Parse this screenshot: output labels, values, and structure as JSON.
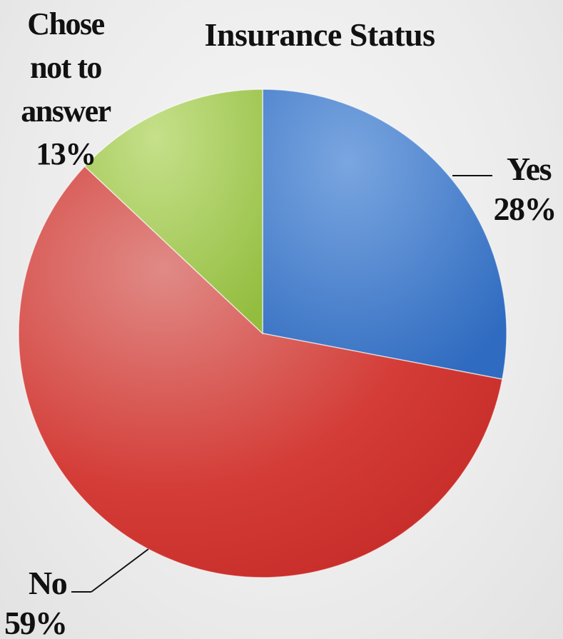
{
  "chart_data": {
    "type": "pie",
    "title": "Insurance Status",
    "slices": [
      {
        "label": "Yes",
        "value": 28,
        "display": "28%",
        "color": "#3f78c8"
      },
      {
        "label": "No",
        "value": 59,
        "display": "59%",
        "color": "#d23a36"
      },
      {
        "label": "Chose not to answer",
        "value": 13,
        "display": "13%",
        "color": "#9bc44a"
      }
    ],
    "start_angle_deg": 0,
    "direction": "clockwise"
  },
  "labels": {
    "yes": {
      "name_line1": "Yes",
      "percent": "28%"
    },
    "no": {
      "name_line1": "No",
      "percent": "59%"
    },
    "chose": {
      "line1": "Chose",
      "line2": "not to",
      "line3": "answer",
      "percent": "13%"
    }
  }
}
